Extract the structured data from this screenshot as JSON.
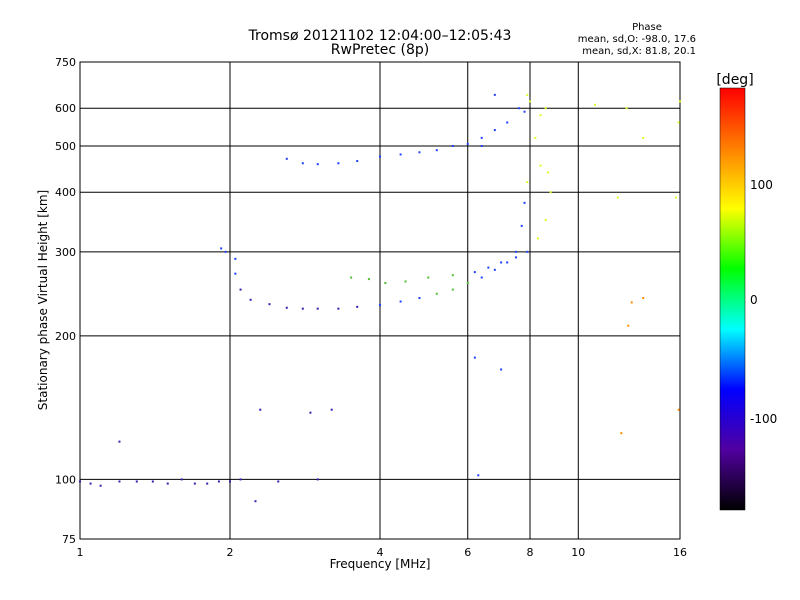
{
  "title_line1": "Tromsø 20121102 12:04:00–12:05:43",
  "title_line2": "RwPretec (8p)",
  "phase_box": {
    "title": "Phase",
    "line1": "mean, sd,O: -98.0, 17.6",
    "line2": "mean, sd,X:  81.8, 20.1"
  },
  "colorbar": {
    "unit_label": "[deg]",
    "ticks": [
      "100",
      "0",
      "-100"
    ],
    "colors": [
      "#ff0000",
      "#ff8000",
      "#ffff00",
      "#00ff00",
      "#00ffff",
      "#0000ff",
      "#5000a0",
      "#000000"
    ]
  },
  "chart_data": {
    "type": "scatter",
    "xlabel": "Frequency [MHz]",
    "ylabel": "Stationary phase Virtual Height [km]",
    "x_scale": "log",
    "y_scale": "log",
    "xlim": [
      1,
      16
    ],
    "ylim": [
      75,
      750
    ],
    "x_ticks": [
      "1",
      "2",
      "4",
      "6",
      "8",
      "10",
      "16"
    ],
    "y_ticks": [
      "750",
      "600",
      "500",
      "400",
      "300",
      "200",
      "100",
      "75"
    ],
    "grid": true,
    "series": [
      {
        "points": [
          [
            1.0,
            99
          ],
          [
            1.05,
            98
          ],
          [
            1.1,
            97
          ],
          [
            1.2,
            99
          ],
          [
            1.3,
            99
          ],
          [
            1.4,
            99
          ],
          [
            1.5,
            98
          ],
          [
            1.6,
            100
          ],
          [
            1.7,
            98
          ],
          [
            1.8,
            98
          ],
          [
            1.9,
            99
          ],
          [
            2.0,
            99
          ],
          [
            2.1,
            100
          ],
          [
            1.92,
            305
          ],
          [
            1.96,
            300
          ],
          [
            2.05,
            290
          ],
          [
            2.05,
            270
          ],
          [
            2.1,
            250
          ],
          [
            2.2,
            238
          ],
          [
            2.4,
            233
          ],
          [
            2.6,
            229
          ],
          [
            2.8,
            228
          ],
          [
            3.0,
            228
          ],
          [
            3.3,
            228
          ],
          [
            3.6,
            230
          ],
          [
            4.0,
            232
          ],
          [
            4.4,
            236
          ],
          [
            4.8,
            240
          ],
          [
            5.2,
            245
          ],
          [
            5.6,
            250
          ],
          [
            6.0,
            258
          ],
          [
            6.4,
            265
          ],
          [
            6.8,
            275
          ],
          [
            7.2,
            285
          ],
          [
            7.5,
            300
          ],
          [
            7.7,
            340
          ],
          [
            7.8,
            380
          ],
          [
            7.9,
            420
          ],
          [
            2.6,
            470
          ],
          [
            2.8,
            460
          ],
          [
            3.0,
            458
          ],
          [
            3.3,
            460
          ],
          [
            3.6,
            465
          ],
          [
            4.0,
            475
          ],
          [
            4.4,
            480
          ],
          [
            4.8,
            485
          ],
          [
            5.2,
            490
          ],
          [
            5.6,
            500
          ],
          [
            6.0,
            505
          ],
          [
            6.4,
            520
          ],
          [
            6.8,
            540
          ],
          [
            7.2,
            560
          ],
          [
            7.6,
            600
          ],
          [
            7.9,
            640
          ],
          [
            8.0,
            620
          ],
          [
            7.8,
            590
          ],
          [
            3.5,
            265
          ],
          [
            3.8,
            263
          ],
          [
            4.1,
            258
          ],
          [
            4.5,
            260
          ],
          [
            5.0,
            265
          ],
          [
            5.6,
            268
          ],
          [
            6.2,
            272
          ],
          [
            6.6,
            278
          ],
          [
            7.0,
            285
          ],
          [
            7.5,
            292
          ],
          [
            7.9,
            300
          ],
          [
            8.3,
            320
          ],
          [
            8.6,
            350
          ],
          [
            8.8,
            400
          ],
          [
            8.7,
            440
          ],
          [
            8.4,
            455
          ],
          [
            8.2,
            520
          ],
          [
            8.4,
            580
          ],
          [
            8.6,
            600
          ],
          [
            6.4,
            500
          ],
          [
            7.0,
            170
          ],
          [
            6.3,
            102
          ],
          [
            2.9,
            138
          ],
          [
            3.2,
            140
          ],
          [
            2.3,
            140
          ],
          [
            2.25,
            90
          ],
          [
            1.2,
            120
          ],
          [
            2.5,
            99
          ],
          [
            3.0,
            100
          ],
          [
            10.8,
            610
          ],
          [
            12.0,
            390
          ],
          [
            12.5,
            600
          ],
          [
            13.5,
            520
          ],
          [
            12.6,
            210
          ],
          [
            12.2,
            125
          ],
          [
            13.5,
            240
          ],
          [
            16.0,
            620
          ],
          [
            15.9,
            560
          ],
          [
            15.7,
            390
          ],
          [
            15.9,
            140
          ],
          [
            12.8,
            235
          ],
          [
            6.8,
            640
          ],
          [
            6.2,
            180
          ]
        ]
      }
    ]
  }
}
